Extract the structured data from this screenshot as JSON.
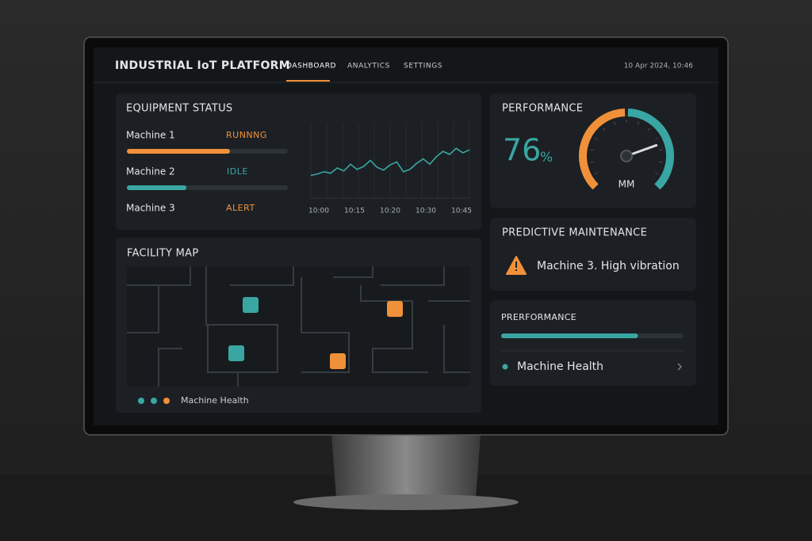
{
  "header": {
    "title": "INDUSTRIAL IoT PLATFORM",
    "nav": [
      "DASHBOARD",
      "ANALYTICS",
      "SETTINGS"
    ],
    "datetime": "10 Apr 2024, 10:46"
  },
  "equipment_status": {
    "title": "EQUIPMENT STATUS",
    "machines": [
      {
        "name": "Machine 1",
        "status": "RUNNNG",
        "progress": 64
      },
      {
        "name": "Machine 2",
        "status": "IDLE",
        "progress": 37
      },
      {
        "name": "Machine 3",
        "status": "ALERT"
      }
    ],
    "trend": {
      "times": [
        "10:00",
        "10:15",
        "10:20",
        "10:30",
        "10:45"
      ],
      "values": [
        30,
        32,
        35,
        33,
        40,
        36,
        45,
        38,
        42,
        50,
        41,
        37,
        44,
        48,
        35,
        38,
        46,
        52,
        45,
        55,
        62,
        58,
        66,
        60,
        64
      ],
      "ylim": [
        0,
        100
      ]
    }
  },
  "facility_map": {
    "title": "FACILITY MAP",
    "legend": "Machine Health"
  },
  "performance": {
    "title": "PERFORMANCE",
    "value": 76,
    "unit": "%",
    "gauge_label": "MM",
    "range": [
      0,
      100
    ]
  },
  "predictive_maintenance": {
    "title": "PREDICTIVE MAINTENANCE",
    "message": "Machine 3. High vibration"
  },
  "performance_bar": {
    "title": "PRERFORMANCE",
    "progress": 75,
    "item": "Machine Health"
  }
}
